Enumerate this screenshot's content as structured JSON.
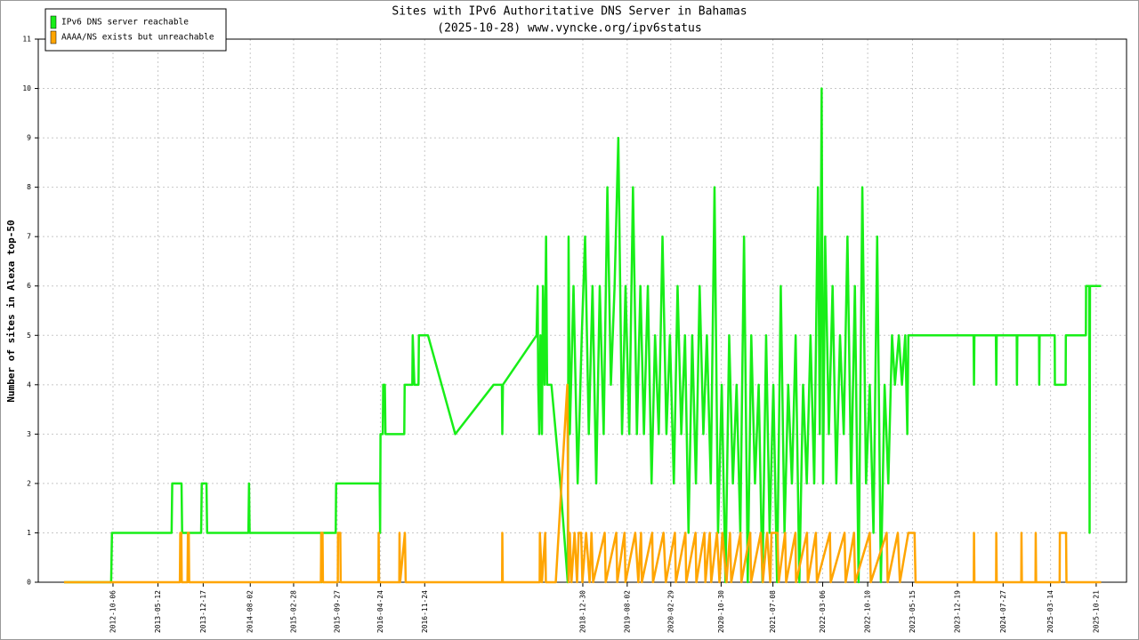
{
  "chart_data": {
    "type": "line",
    "title": "Sites with IPv6 Authoritative DNS Server in Bahamas",
    "subtitle": "(2025-10-28) www.vyncke.org/ipv6status",
    "y_label": "Number of sites in Alexa top-50",
    "legend": "top-left",
    "grid": true,
    "xlim": [
      "2011-10-10",
      "2026-03-17"
    ],
    "ylim": [
      0,
      11
    ],
    "yticks": [
      0,
      1,
      2,
      3,
      4,
      5,
      6,
      7,
      8,
      9,
      10,
      11
    ],
    "xticks": [
      "2012-10-06",
      "2013-05-12",
      "2013-12-17",
      "2014-08-02",
      "2015-02-28",
      "2015-09-27",
      "2016-04-24",
      "2016-11-24",
      "2018-12-30",
      "2019-08-02",
      "2020-02-29",
      "2020-10-30",
      "2021-07-08",
      "2022-03-06",
      "2022-10-10",
      "2023-05-15",
      "2023-12-19",
      "2024-07-27",
      "2025-03-14",
      "2025-10-21"
    ],
    "series": [
      {
        "name": "IPv6 DNS server reachable",
        "color": "#18ee18",
        "x": [
          "2012-02-12",
          "2012-09-27",
          "2012-10-01",
          "2013-07-17",
          "2013-07-20",
          "2013-09-03",
          "2013-09-06",
          "2013-12-07",
          "2013-12-10",
          "2014-01-02",
          "2014-01-05",
          "2014-07-24",
          "2014-07-27",
          "2014-07-30",
          "2015-07-12",
          "2015-07-14",
          "2015-07-17",
          "2015-09-20",
          "2015-09-22",
          "2016-04-20",
          "2016-04-22",
          "2016-04-24",
          "2016-05-05",
          "2016-05-07",
          "2016-05-15",
          "2016-05-18",
          "2016-06-19",
          "2016-08-17",
          "2016-08-19",
          "2016-09-25",
          "2016-09-27",
          "2016-10-05",
          "2016-10-25",
          "2016-10-27",
          "2016-11-22",
          "2016-12-10",
          "2017-04-21",
          "2017-10-24",
          "2017-12-03",
          "2017-12-05",
          "2017-12-08",
          "2018-05-20",
          "2018-05-25",
          "2018-05-28",
          "2018-06-02",
          "2018-06-08",
          "2018-06-15",
          "2018-06-20",
          "2018-06-28",
          "2018-07-05",
          "2018-07-10",
          "2018-07-31",
          "2018-09-12",
          "2018-10-18",
          "2018-10-22",
          "2018-10-28",
          "2018-11-15",
          "2018-12-05",
          "2018-12-25",
          "2019-01-10",
          "2019-01-28",
          "2019-02-15",
          "2019-03-05",
          "2019-03-22",
          "2019-04-10",
          "2019-04-28",
          "2019-05-15",
          "2019-06-02",
          "2019-06-20",
          "2019-07-08",
          "2019-07-25",
          "2019-08-12",
          "2019-08-30",
          "2019-09-18",
          "2019-10-05",
          "2019-10-22",
          "2019-11-10",
          "2019-11-28",
          "2019-12-15",
          "2020-01-02",
          "2020-01-20",
          "2020-02-08",
          "2020-02-25",
          "2020-03-15",
          "2020-04-02",
          "2020-04-20",
          "2020-05-08",
          "2020-05-25",
          "2020-06-12",
          "2020-06-30",
          "2020-07-18",
          "2020-08-05",
          "2020-08-22",
          "2020-09-10",
          "2020-09-28",
          "2020-10-15",
          "2020-11-02",
          "2020-11-20",
          "2020-12-08",
          "2020-12-26",
          "2021-01-13",
          "2021-01-31",
          "2021-02-18",
          "2021-03-08",
          "2021-03-25",
          "2021-04-12",
          "2021-04-30",
          "2021-05-18",
          "2021-06-05",
          "2021-06-22",
          "2021-07-10",
          "2021-07-28",
          "2021-08-15",
          "2021-09-02",
          "2021-09-20",
          "2021-10-08",
          "2021-10-26",
          "2021-11-13",
          "2021-12-01",
          "2021-12-19",
          "2022-01-06",
          "2022-01-24",
          "2022-02-11",
          "2022-02-20",
          "2022-03-01",
          "2022-03-08",
          "2022-03-18",
          "2022-04-05",
          "2022-04-23",
          "2022-05-11",
          "2022-05-29",
          "2022-06-16",
          "2022-07-04",
          "2022-07-22",
          "2022-08-09",
          "2022-08-27",
          "2022-09-14",
          "2022-10-02",
          "2022-10-20",
          "2022-11-07",
          "2022-11-25",
          "2022-12-13",
          "2022-12-31",
          "2023-01-18",
          "2023-02-05",
          "2023-02-19",
          "2023-03-10",
          "2023-03-25",
          "2023-04-10",
          "2023-04-20",
          "2023-04-25",
          "2024-03-06",
          "2024-03-08",
          "2024-03-10",
          "2024-06-22",
          "2024-06-24",
          "2024-06-26",
          "2024-10-01",
          "2024-10-02",
          "2024-10-04",
          "2025-01-17",
          "2025-01-18",
          "2025-01-20",
          "2025-04-03",
          "2025-04-04",
          "2025-05-26",
          "2025-05-27",
          "2025-09-01",
          "2025-09-02",
          "2025-09-17",
          "2025-09-19",
          "2025-09-21",
          "2025-11-14"
        ],
        "values": [
          0,
          0,
          1,
          1,
          2,
          2,
          1,
          1,
          2,
          2,
          1,
          1,
          2,
          1,
          1,
          0,
          1,
          1,
          2,
          2,
          1,
          3,
          3,
          4,
          4,
          3,
          3,
          3,
          4,
          4,
          5,
          4,
          4,
          5,
          5,
          5,
          3,
          4,
          4,
          3,
          4,
          5,
          6,
          4,
          3,
          5,
          3,
          6,
          4,
          7,
          4,
          4,
          2,
          0,
          7,
          3,
          6,
          2,
          5,
          7,
          3,
          6,
          2,
          6,
          3,
          8,
          4,
          6,
          9,
          3,
          6,
          3,
          8,
          3,
          6,
          3,
          6,
          2,
          5,
          3,
          7,
          3,
          5,
          2,
          6,
          3,
          5,
          1,
          5,
          2,
          6,
          3,
          5,
          2,
          8,
          1,
          4,
          0,
          5,
          2,
          4,
          1,
          7,
          0,
          5,
          2,
          4,
          0,
          5,
          1,
          4,
          0,
          6,
          1,
          4,
          2,
          5,
          0,
          4,
          2,
          5,
          2,
          8,
          3,
          10,
          2,
          7,
          3,
          6,
          2,
          5,
          3,
          7,
          2,
          6,
          0,
          8,
          2,
          4,
          1,
          7,
          0,
          4,
          2,
          5,
          4,
          5,
          4,
          5,
          3,
          5,
          5,
          4,
          5,
          5,
          4,
          5,
          5,
          4,
          5,
          5,
          4,
          5,
          5,
          4,
          4,
          5,
          5,
          6,
          6,
          1,
          6,
          6
        ]
      },
      {
        "name": "AAAA/NS exists but unreachable",
        "color": "#ffa500",
        "x": [
          "2012-02-12",
          "2013-08-26",
          "2013-08-28",
          "2013-09-02",
          "2013-09-04",
          "2013-10-02",
          "2013-10-04",
          "2013-10-08",
          "2013-10-10",
          "2015-07-10",
          "2015-07-12",
          "2015-07-18",
          "2015-07-20",
          "2015-09-30",
          "2015-10-01",
          "2015-10-12",
          "2015-10-14",
          "2016-04-14",
          "2016-04-15",
          "2016-04-17",
          "2016-07-24",
          "2016-07-25",
          "2016-07-28",
          "2016-08-20",
          "2016-08-24",
          "2017-12-04",
          "2017-12-05",
          "2017-12-07",
          "2018-06-04",
          "2018-06-05",
          "2018-06-15",
          "2018-07-01",
          "2018-07-04",
          "2018-08-21",
          "2018-10-16",
          "2018-10-22",
          "2018-10-28",
          "2018-11-05",
          "2018-11-20",
          "2018-12-02",
          "2018-12-10",
          "2018-12-22",
          "2018-12-28",
          "2019-01-15",
          "2019-02-01",
          "2019-02-10",
          "2019-02-18",
          "2019-04-15",
          "2019-04-20",
          "2019-06-10",
          "2019-06-15",
          "2019-07-20",
          "2019-07-25",
          "2019-09-10",
          "2019-09-25",
          "2019-10-08",
          "2019-10-12",
          "2019-12-01",
          "2019-12-05",
          "2020-01-25",
          "2020-02-05",
          "2020-03-20",
          "2020-03-25",
          "2020-05-10",
          "2020-05-14",
          "2020-06-28",
          "2020-07-02",
          "2020-08-10",
          "2020-08-15",
          "2020-09-05",
          "2020-09-12",
          "2020-10-10",
          "2020-10-22",
          "2020-11-05",
          "2020-11-25",
          "2020-12-12",
          "2020-12-18",
          "2021-02-01",
          "2021-02-05",
          "2021-03-20",
          "2021-03-24",
          "2021-05-10",
          "2021-05-20",
          "2021-06-10",
          "2021-06-25",
          "2021-07-01",
          "2021-07-30",
          "2021-08-05",
          "2021-09-05",
          "2021-09-10",
          "2021-10-25",
          "2021-10-28",
          "2021-12-20",
          "2021-12-24",
          "2022-02-01",
          "2022-02-06",
          "2022-04-10",
          "2022-04-14",
          "2022-06-20",
          "2022-06-25",
          "2022-08-05",
          "2022-08-10",
          "2022-10-20",
          "2022-10-25",
          "2023-01-10",
          "2023-01-15",
          "2023-03-05",
          "2023-03-15",
          "2023-04-25",
          "2023-05-25",
          "2023-05-30",
          "2024-03-07",
          "2024-03-08",
          "2024-03-10",
          "2024-06-23",
          "2024-06-24",
          "2024-06-26",
          "2024-10-23",
          "2024-10-24",
          "2024-10-26",
          "2024-12-31",
          "2025-01-01",
          "2025-01-03",
          "2025-04-27",
          "2025-04-28",
          "2025-05-28",
          "2025-05-30",
          "2025-11-14"
        ],
        "values": [
          0,
          0,
          1,
          1,
          0,
          0,
          1,
          1,
          0,
          0,
          1,
          1,
          0,
          0,
          1,
          1,
          0,
          0,
          1,
          0,
          0,
          1,
          0,
          1,
          0,
          0,
          1,
          0,
          0,
          1,
          0,
          1,
          0,
          0,
          4,
          0,
          1,
          0,
          1,
          0,
          1,
          1,
          0,
          1,
          0,
          1,
          0,
          1,
          0,
          1,
          0,
          1,
          0,
          1,
          0,
          1,
          0,
          1,
          0,
          1,
          0,
          1,
          0,
          1,
          0,
          1,
          0,
          1,
          0,
          1,
          0,
          1,
          0,
          1,
          0,
          1,
          0,
          1,
          0,
          1,
          0,
          1,
          0,
          1,
          0,
          1,
          1,
          0,
          1,
          0,
          1,
          0,
          1,
          0,
          1,
          0,
          1,
          0,
          1,
          0,
          1,
          0,
          1,
          0,
          1,
          0,
          1,
          0,
          1,
          1,
          0,
          0,
          1,
          0,
          0,
          1,
          0,
          0,
          1,
          0,
          0,
          1,
          0,
          0,
          1,
          1,
          0,
          0
        ]
      }
    ]
  }
}
